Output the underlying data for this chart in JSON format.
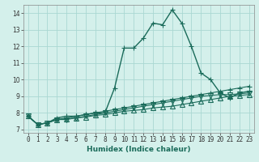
{
  "title": "",
  "xlabel": "Humidex (Indice chaleur)",
  "ylabel": "",
  "xlim": [
    -0.5,
    23.5
  ],
  "ylim": [
    6.8,
    14.5
  ],
  "yticks": [
    7,
    8,
    9,
    10,
    11,
    12,
    13,
    14
  ],
  "xticks": [
    0,
    1,
    2,
    3,
    4,
    5,
    6,
    7,
    8,
    9,
    10,
    11,
    12,
    13,
    14,
    15,
    16,
    17,
    18,
    19,
    20,
    21,
    22,
    23
  ],
  "bg_color": "#d4f0eb",
  "grid_color": "#aad8d2",
  "line_color": "#1a6b5a",
  "series": [
    [
      7.8,
      7.3,
      7.4,
      7.7,
      7.8,
      7.8,
      7.9,
      8.0,
      8.0,
      9.5,
      11.9,
      11.9,
      12.5,
      13.4,
      13.3,
      14.2,
      13.4,
      12.0,
      10.4,
      10.0,
      9.2,
      8.9,
      9.2,
      9.3
    ],
    [
      7.8,
      7.3,
      7.4,
      7.6,
      7.7,
      7.8,
      7.9,
      8.0,
      8.1,
      8.2,
      8.3,
      8.4,
      8.5,
      8.6,
      8.7,
      8.8,
      8.9,
      9.0,
      9.1,
      9.2,
      9.3,
      9.4,
      9.5,
      9.6
    ],
    [
      7.8,
      7.3,
      7.4,
      7.6,
      7.6,
      7.7,
      7.8,
      7.9,
      8.0,
      8.1,
      8.2,
      8.3,
      8.4,
      8.5,
      8.6,
      8.7,
      8.8,
      8.9,
      9.0,
      9.05,
      9.1,
      9.1,
      9.15,
      9.2
    ],
    [
      7.8,
      7.3,
      7.4,
      7.6,
      7.65,
      7.7,
      7.75,
      7.85,
      7.9,
      8.0,
      8.1,
      8.15,
      8.2,
      8.3,
      8.35,
      8.4,
      8.5,
      8.6,
      8.7,
      8.8,
      8.9,
      9.0,
      9.05,
      9.1
    ]
  ],
  "markers": [
    "+",
    "+",
    "v",
    "^"
  ],
  "marker_sizes": [
    4,
    4,
    4,
    4
  ],
  "linewidths": [
    1.0,
    0.8,
    0.8,
    0.8
  ],
  "tick_fontsize": 5.5,
  "xlabel_fontsize": 6.5
}
